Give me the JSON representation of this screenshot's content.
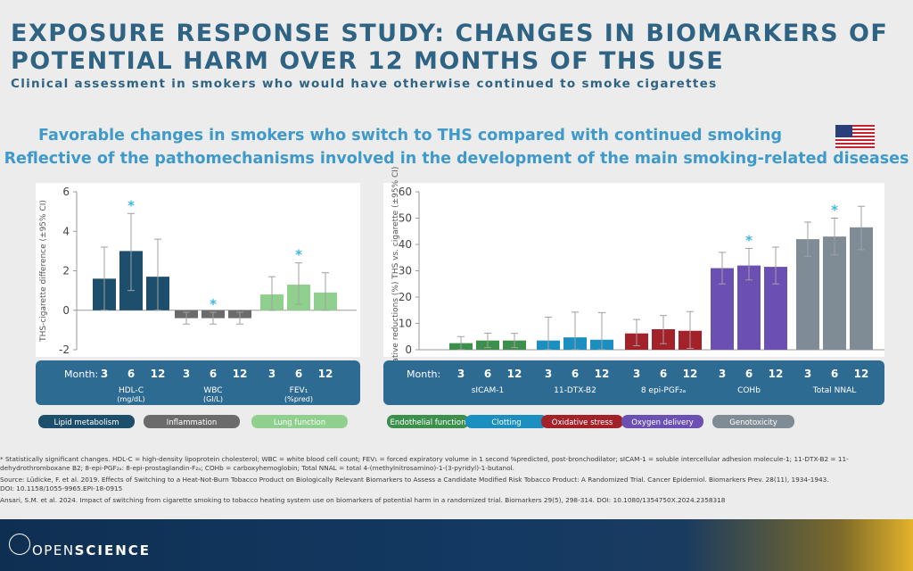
{
  "title": "EXPOSURE RESPONSE STUDY: CHANGES IN BIOMARKERS OF POTENTIAL HARM OVER 12 MONTHS OF THS USE",
  "subtitle": "Clinical assessment in smokers who would have otherwise continued to smoke cigarettes",
  "lead1": "Favorable changes in smokers who switch to THS compared with continued smoking",
  "lead2": "Reflective of the pathomechanisms involved in the development of the main smoking-related diseases",
  "footnotes": [
    "* Statistically significant changes. HDL-C = high-density lipoprotein cholesterol; WBC = white blood cell count; FEV₁ = forced expiratory volume in 1 second %predicted, post-bronchodilator; sICAM-1 = soluble intercellular adhesion molecule-1; 11-DTX-B2 = 11-",
    "dehydrothromboxane B2; 8-epi-PGF₂ₐ: 8-epi-prostaglandin-F₂ₐ; COHb = carboxyhemoglobin; Total NNAL = total 4-(methylnitrosamino)-1-(3-pyridyl)-1-butanol.",
    "Source:  Lüdicke, F. et al. 2019. Effects of Switching to a Heat-Not-Burn Tobacco Product on Biologically Relevant Biomarkers to Assess a Candidate Modified Risk Tobacco Product: A Randomized Trial. Cancer Epidemiol. Biomarkers Prev. 28(11), 1934-1943.",
    "DOI: 10.1158/1055-9965.EPI-18-0915",
    "Ansari, S.M. et al. 2024. Impact of switching from cigarette smoking to tobacco heating system use on biomarkers of potential harm in a randomized trial. Biomarkers 29(5), 298-314. DOI: 10.1080/1354750X.2024.2358318"
  ],
  "logo": {
    "open": "OPEN",
    "science": "SCIENCE"
  },
  "colors": {
    "lipid": "#1d4e6b",
    "inflammation": "#6b6b6b",
    "lung": "#8fd08f",
    "endothelial": "#3d8f4c",
    "clotting": "#1b8fbf",
    "oxidative": "#a3222a",
    "oxygen": "#6b4fb3",
    "genotoxicity": "#7f8c96",
    "band": "#2e6b93",
    "star": "#3fb7e0"
  },
  "chart_data": [
    {
      "type": "bar",
      "ylabel": "THS-cigarette difference (±95% CI)",
      "ylim": [
        -2,
        6
      ],
      "yticks": [
        -2,
        0,
        2,
        4,
        6
      ],
      "month_label": "Month:",
      "groups": [
        {
          "label": "HDL-C",
          "unit": "(mg/dL)",
          "category": "Lipid metabolism",
          "color_key": "lipid",
          "months": [
            "3",
            "6",
            "12"
          ],
          "values": [
            1.6,
            3.0,
            1.7
          ],
          "ci_low": [
            0.0,
            1.0,
            0.0
          ],
          "ci_high": [
            3.2,
            4.9,
            3.6
          ],
          "significant": [
            false,
            true,
            false
          ]
        },
        {
          "label": "WBC",
          "unit": "(GI/L)",
          "category": "Inflammation",
          "color_key": "inflammation",
          "months": [
            "3",
            "6",
            "12"
          ],
          "values": [
            -0.4,
            -0.4,
            -0.4
          ],
          "ci_low": [
            -0.7,
            -0.7,
            -0.7
          ],
          "ci_high": [
            -0.1,
            -0.1,
            -0.1
          ],
          "significant": [
            false,
            true,
            false
          ]
        },
        {
          "label": "FEV₁",
          "unit": "(%pred)",
          "category": "Lung function",
          "color_key": "lung",
          "months": [
            "3",
            "6",
            "12"
          ],
          "values": [
            0.8,
            1.3,
            0.9
          ],
          "ci_low": [
            0.0,
            0.3,
            0.0
          ],
          "ci_high": [
            1.7,
            2.4,
            1.9
          ],
          "significant": [
            false,
            true,
            false
          ]
        }
      ]
    },
    {
      "type": "bar",
      "ylabel": "Relative reductions (%) THS vs. cigarette (±95% CI)",
      "ylim": [
        0,
        60
      ],
      "yticks": [
        0,
        10,
        20,
        30,
        40,
        50,
        60
      ],
      "month_label": "Month:",
      "groups": [
        {
          "label": "sICAM-1",
          "unit": "",
          "category": "Endothelial function",
          "color_key": "endothelial",
          "months": [
            "3",
            "6",
            "12"
          ],
          "values": [
            2.5,
            3.5,
            3.5
          ],
          "ci_low": [
            0.0,
            0.8,
            0.8
          ],
          "ci_high": [
            5.0,
            6.3,
            6.2
          ],
          "significant": [
            false,
            false,
            false
          ]
        },
        {
          "label": "11-DTX-B2",
          "unit": "",
          "category": "Clotting",
          "color_key": "clotting",
          "months": [
            "3",
            "6",
            "12"
          ],
          "values": [
            3.5,
            4.7,
            3.8
          ],
          "ci_low": [
            0.0,
            0.0,
            0.0
          ],
          "ci_high": [
            12.4,
            14.3,
            14.1
          ],
          "significant": [
            false,
            false,
            false
          ]
        },
        {
          "label": "8 epi-PGF₂ₐ",
          "unit": "",
          "category": "Oxidative stress",
          "color_key": "oxidative",
          "months": [
            "3",
            "6",
            "12"
          ],
          "values": [
            6.2,
            7.8,
            7.2
          ],
          "ci_low": [
            1.5,
            2.3,
            0.5
          ],
          "ci_high": [
            11.5,
            13.0,
            14.5
          ],
          "significant": [
            false,
            false,
            false
          ]
        },
        {
          "label": "COHb",
          "unit": "",
          "category": "Oxygen delivery",
          "color_key": "oxygen",
          "months": [
            "3",
            "6",
            "12"
          ],
          "values": [
            31.0,
            32.0,
            31.5
          ],
          "ci_low": [
            25.0,
            26.5,
            25.0
          ],
          "ci_high": [
            37.0,
            38.5,
            39.0
          ],
          "significant": [
            false,
            true,
            false
          ]
        },
        {
          "label": "Total NNAL",
          "unit": "",
          "category": "Genotoxicity",
          "color_key": "genotoxicity",
          "months": [
            "3",
            "6",
            "12"
          ],
          "values": [
            42.0,
            43.0,
            46.5
          ],
          "ci_low": [
            35.5,
            36.0,
            38.0
          ],
          "ci_high": [
            48.5,
            50.0,
            54.5
          ],
          "significant": [
            false,
            true,
            false
          ]
        }
      ]
    }
  ]
}
